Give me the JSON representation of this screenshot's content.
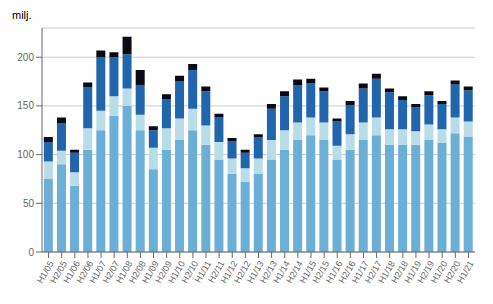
{
  "chart_data": {
    "type": "bar",
    "stacked": true,
    "ylabel": "milj.",
    "categories": [
      "H1/05",
      "H2/05",
      "H1/06",
      "H2/06",
      "H1/07",
      "H2/07",
      "H1/08",
      "H2/08",
      "H1/09",
      "H2/09",
      "H1/10",
      "H2/10",
      "H1/11",
      "H2/11",
      "H1/12",
      "H2/12",
      "H1/13",
      "H2/13",
      "H1/14",
      "H2/14",
      "H1/15",
      "H2/15",
      "H1/16",
      "H2/16",
      "H1/17",
      "H2/17",
      "H1/18",
      "H2/18",
      "H1/19",
      "H2/19",
      "H1/20",
      "H2/20",
      "H1/21"
    ],
    "series": [
      {
        "color": "#6baed6",
        "values": [
          75,
          90,
          68,
          105,
          125,
          140,
          150,
          125,
          85,
          105,
          115,
          125,
          110,
          95,
          80,
          72,
          80,
          95,
          105,
          115,
          120,
          115,
          95,
          105,
          115,
          120,
          110,
          110,
          110,
          115,
          112,
          122,
          118
        ]
      },
      {
        "color": "#b8dce8",
        "values": [
          18,
          14,
          14,
          22,
          20,
          20,
          18,
          16,
          22,
          22,
          22,
          22,
          20,
          18,
          16,
          14,
          16,
          20,
          20,
          18,
          18,
          18,
          14,
          16,
          18,
          18,
          16,
          16,
          14,
          16,
          14,
          16,
          16
        ]
      },
      {
        "color": "#2166ac",
        "values": [
          20,
          28,
          20,
          42,
          55,
          40,
          35,
          30,
          18,
          30,
          38,
          40,
          35,
          25,
          18,
          16,
          22,
          32,
          35,
          38,
          35,
          32,
          25,
          30,
          35,
          40,
          38,
          30,
          25,
          30,
          26,
          34,
          32
        ]
      },
      {
        "color": "#0a0a14",
        "values": [
          5,
          6,
          3,
          5,
          7,
          5,
          18,
          16,
          4,
          5,
          6,
          6,
          5,
          4,
          3,
          3,
          3,
          5,
          5,
          6,
          5,
          4,
          3,
          4,
          5,
          5,
          4,
          4,
          3,
          4,
          3,
          4,
          4
        ]
      }
    ],
    "ylim": [
      0,
      230
    ],
    "yticks": [
      0,
      50,
      100,
      150,
      200
    ],
    "grid": true
  }
}
